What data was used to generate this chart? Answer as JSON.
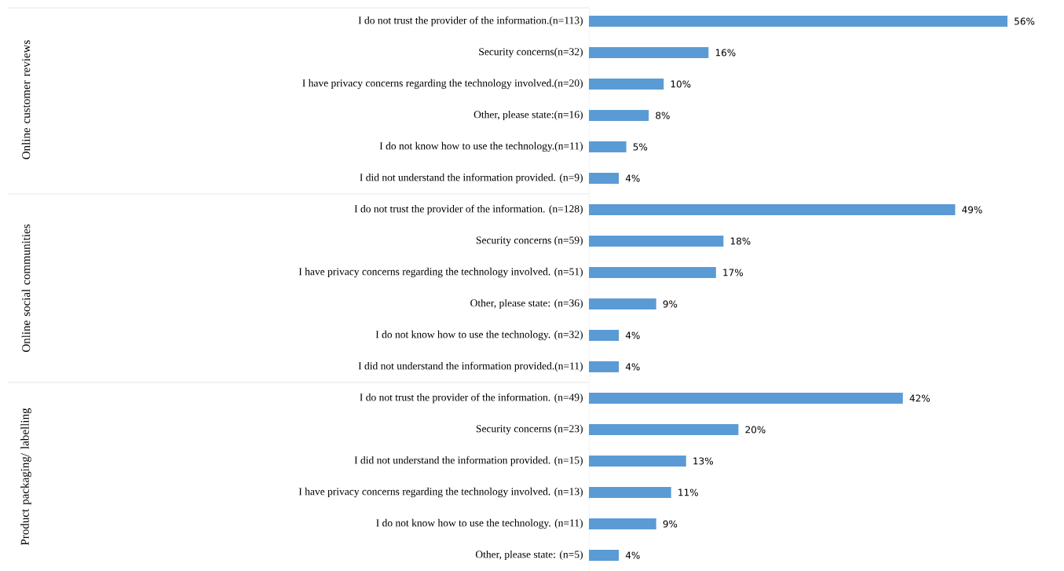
{
  "chart_data": {
    "type": "bar",
    "orientation": "horizontal",
    "color": "#5b9bd5",
    "categories": [
      "I do not trust the provider of the information.(n=113)",
      "Security concerns(n=32)",
      "I have privacy concerns regarding the technology involved.(n=20)",
      "Other, please state:(n=16)",
      "I do not know how to use the technology.(n=11)",
      "I did not understand the information provided. (n=9)",
      "I do not trust the provider of the information. (n=128)",
      "Security concerns (n=59)",
      "I have privacy concerns regarding the technology involved. (n=51)",
      "Other, please state: (n=36)",
      "I do not know how to use the technology. (n=32)",
      "I did not understand the information provided.(n=11)",
      "I do not trust the provider of the information. (n=49)",
      "Security concerns (n=23)",
      "I did not understand the information provided. (n=15)",
      "I have privacy concerns regarding the technology involved. (n=13)",
      "I do not know how to use the technology. (n=11)",
      "Other, please state: (n=5)"
    ],
    "values": [
      56,
      16,
      10,
      8,
      5,
      4,
      49,
      18,
      17,
      9,
      4,
      4,
      42,
      20,
      13,
      11,
      9,
      4
    ],
    "value_labels": [
      "56%",
      "16%",
      "10%",
      "8%",
      "5%",
      "4%",
      "49%",
      "18%",
      "17%",
      "9%",
      "4%",
      "4%",
      "42%",
      "20%",
      "13%",
      "11%",
      "9%",
      "4%"
    ],
    "annotations": [
      "Online customer reviews",
      "Online social communities",
      "Product packaging/ labelling"
    ]
  }
}
